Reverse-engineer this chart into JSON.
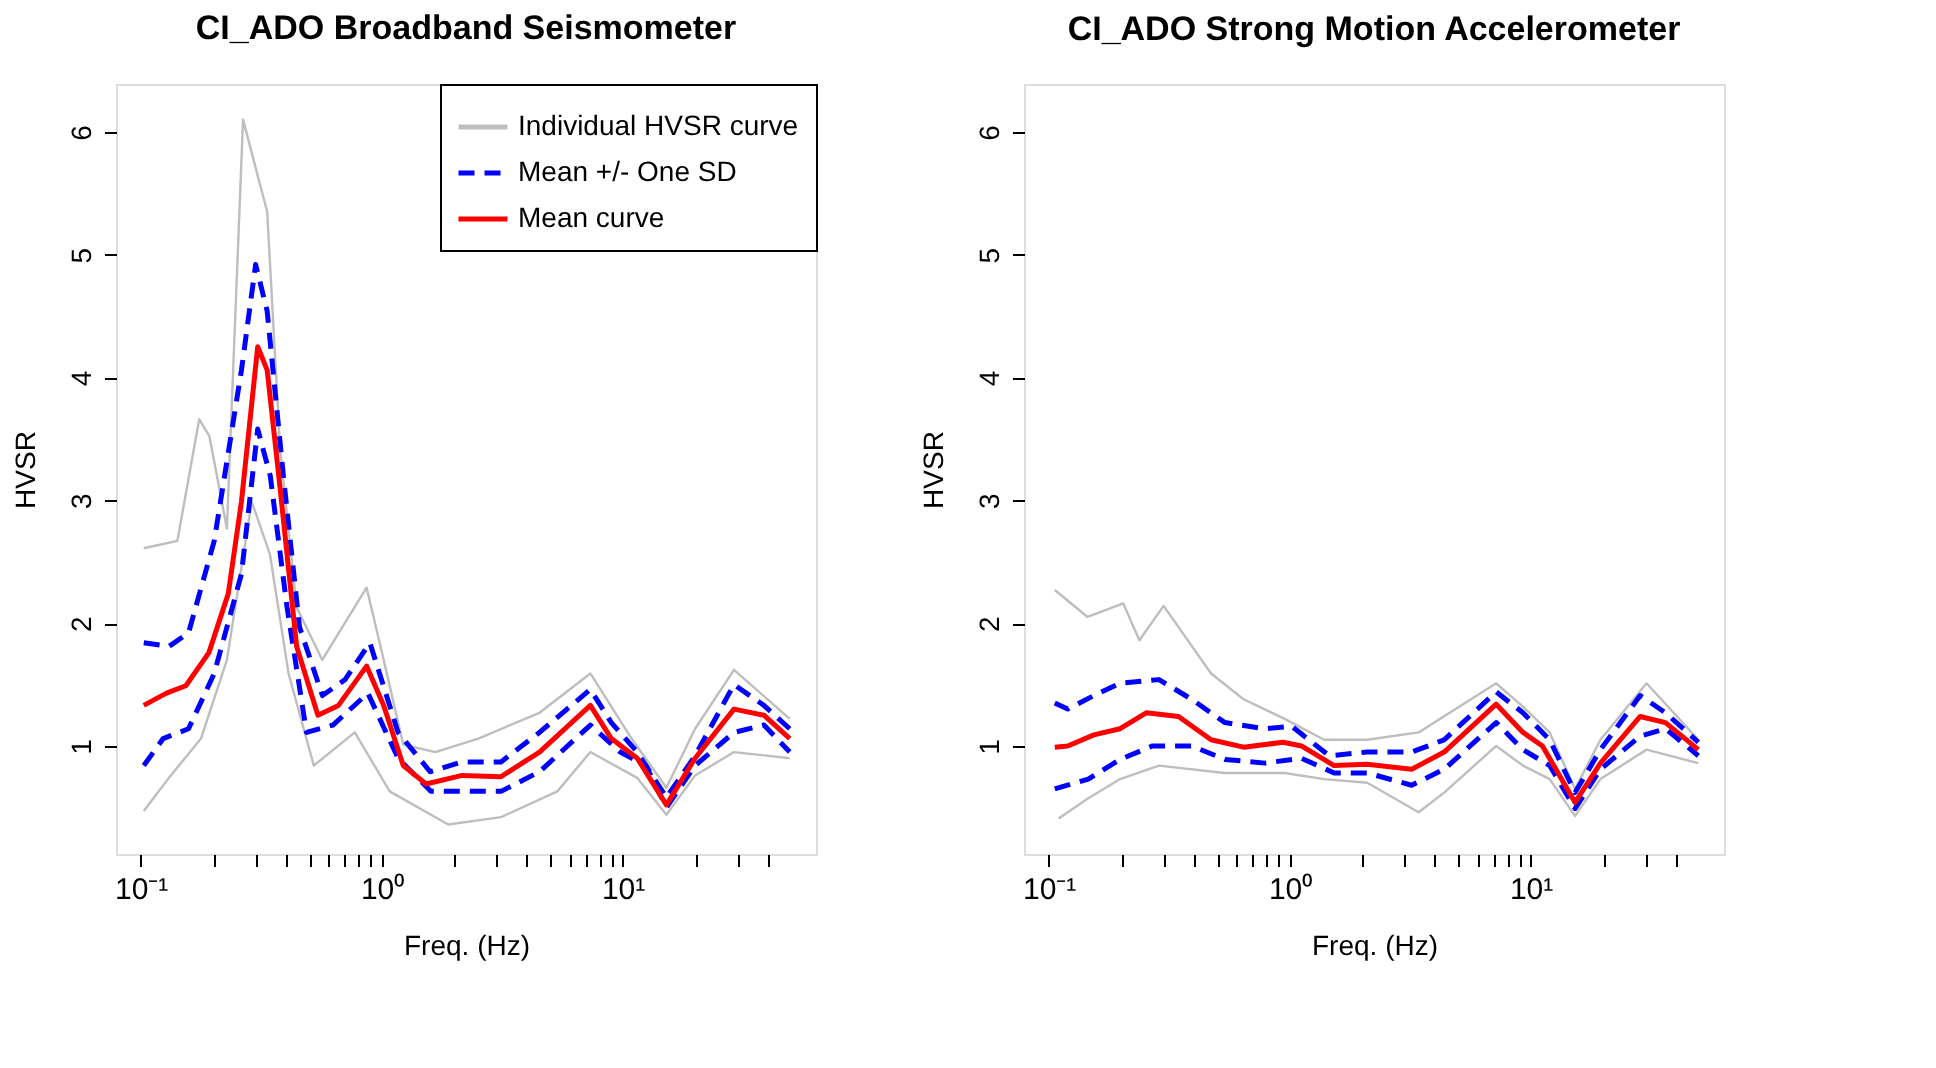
{
  "chart_data": [
    {
      "type": "line",
      "title": "CI_ADO Broadband Seismometer",
      "xlabel": "Freq. (Hz)",
      "ylabel": "HVSR",
      "log": "x",
      "xlim": [
        0.079,
        63.5
      ],
      "ylim": [
        0.12,
        6.39
      ],
      "xticks": [
        {
          "value": 0.1,
          "label": "10⁻¹"
        },
        {
          "value": 0.2,
          "label": null
        },
        {
          "value": 0.3,
          "label": null
        },
        {
          "value": 0.4,
          "label": null
        },
        {
          "value": 0.5,
          "label": null
        },
        {
          "value": 0.6,
          "label": null
        },
        {
          "value": 0.7,
          "label": null
        },
        {
          "value": 0.8,
          "label": null
        },
        {
          "value": 0.9,
          "label": null
        },
        {
          "value": 1,
          "label": "10⁰"
        },
        {
          "value": 2,
          "label": null
        },
        {
          "value": 3,
          "label": null
        },
        {
          "value": 4,
          "label": null
        },
        {
          "value": 5,
          "label": null
        },
        {
          "value": 6,
          "label": null
        },
        {
          "value": 7,
          "label": null
        },
        {
          "value": 8,
          "label": null
        },
        {
          "value": 9,
          "label": null
        },
        {
          "value": 10,
          "label": "10¹"
        },
        {
          "value": 20,
          "label": null
        },
        {
          "value": 30,
          "label": null
        },
        {
          "value": 40,
          "label": null
        }
      ],
      "yticks": [
        1,
        2,
        3,
        4,
        5,
        6
      ],
      "grid": false,
      "legend": "top right",
      "marker": "none",
      "series": [
        {
          "name": "Individual HVSR curve",
          "color": "#bebebe",
          "line_style": "solid",
          "x": [
            0.103,
            0.142,
            0.175,
            0.193,
            0.228,
            0.266,
            0.335,
            0.379,
            0.444,
            0.567,
            0.866,
            1.02,
            1.23,
            1.67,
            2.52,
            4.52,
            7.35,
            10.9,
            15.2,
            20.0,
            29.0,
            49.4
          ],
          "values": [
            2.61,
            2.67,
            3.66,
            3.52,
            2.77,
            6.1,
            5.35,
            3.42,
            2.13,
            1.7,
            2.29,
            1.7,
            1.01,
            0.95,
            1.06,
            1.27,
            1.59,
            1.06,
            0.66,
            1.14,
            1.62,
            1.22
          ]
        },
        {
          "color": "#bebebe",
          "line_style": "solid",
          "x": [
            0.103,
            0.131,
            0.178,
            0.228,
            0.289,
            0.344,
            0.411,
            0.523,
            0.774,
            1.08,
            1.89,
            3.13,
            5.36,
            7.35,
            11.5,
            15.2,
            20.0,
            29.0,
            49.4
          ],
          "values": [
            0.47,
            0.74,
            1.06,
            1.7,
            2.99,
            2.56,
            1.59,
            0.84,
            1.11,
            0.63,
            0.36,
            0.42,
            0.63,
            0.95,
            0.74,
            0.44,
            0.76,
            0.95,
            0.9
          ]
        },
        {
          "name": "Mean +/- One SD",
          "color": "#0000ff",
          "line_style": "dashed",
          "x": [
            0.103,
            0.131,
            0.158,
            0.202,
            0.262,
            0.3,
            0.335,
            0.391,
            0.456,
            0.568,
            0.705,
            0.894,
            1.17,
            1.59,
            2.16,
            3.13,
            4.52,
            7.35,
            8.98,
            11.5,
            15.2,
            20.0,
            29.0,
            38.6,
            49.4
          ],
          "values": [
            1.84,
            1.81,
            1.92,
            2.67,
            4.06,
            4.92,
            4.54,
            3.2,
            1.97,
            1.41,
            1.54,
            1.84,
            1.11,
            0.79,
            0.87,
            0.87,
            1.11,
            1.46,
            1.19,
            0.95,
            0.58,
            0.92,
            1.5,
            1.33,
            1.14
          ]
        },
        {
          "color": "#0000ff",
          "line_style": "dashed",
          "x": [
            0.103,
            0.124,
            0.158,
            0.202,
            0.262,
            0.306,
            0.345,
            0.405,
            0.488,
            0.628,
            0.877,
            1.17,
            1.6,
            2.16,
            3.13,
            4.52,
            7.35,
            9.78,
            12.5,
            15.2,
            20.0,
            29.0,
            38.6,
            49.4
          ],
          "values": [
            0.84,
            1.06,
            1.14,
            1.59,
            2.4,
            3.58,
            3.2,
            2.13,
            1.11,
            1.17,
            1.43,
            0.9,
            0.63,
            0.63,
            0.63,
            0.79,
            1.17,
            0.95,
            0.84,
            0.5,
            0.84,
            1.11,
            1.17,
            0.95
          ]
        },
        {
          "name": "Mean curve",
          "color": "#ff0000",
          "line_style": "solid",
          "x": [
            0.103,
            0.128,
            0.154,
            0.192,
            0.231,
            0.262,
            0.306,
            0.335,
            0.379,
            0.444,
            0.544,
            0.662,
            0.866,
            1.02,
            1.23,
            1.53,
            2.16,
            3.13,
            4.52,
            7.35,
            8.98,
            11.5,
            15.2,
            20.0,
            29.0,
            38.6,
            49.4
          ],
          "values": [
            1.33,
            1.43,
            1.49,
            1.76,
            2.24,
            2.99,
            4.25,
            4.06,
            3.1,
            1.81,
            1.25,
            1.33,
            1.65,
            1.33,
            0.84,
            0.69,
            0.76,
            0.75,
            0.95,
            1.33,
            1.06,
            0.9,
            0.52,
            0.9,
            1.3,
            1.25,
            1.06
          ]
        }
      ]
    },
    {
      "type": "line",
      "title": "CI_ADO Strong Motion Accelerometer",
      "xlabel": "Freq. (Hz)",
      "ylabel": "HVSR",
      "log": "x",
      "xlim": [
        0.079,
        63.5
      ],
      "ylim": [
        0.12,
        6.39
      ],
      "xticks": [
        {
          "value": 0.1,
          "label": "10⁻¹"
        },
        {
          "value": 0.2,
          "label": null
        },
        {
          "value": 0.3,
          "label": null
        },
        {
          "value": 0.4,
          "label": null
        },
        {
          "value": 0.5,
          "label": null
        },
        {
          "value": 0.6,
          "label": null
        },
        {
          "value": 0.7,
          "label": null
        },
        {
          "value": 0.8,
          "label": null
        },
        {
          "value": 0.9,
          "label": null
        },
        {
          "value": 1,
          "label": "10⁰"
        },
        {
          "value": 2,
          "label": null
        },
        {
          "value": 3,
          "label": null
        },
        {
          "value": 4,
          "label": null
        },
        {
          "value": 5,
          "label": null
        },
        {
          "value": 6,
          "label": null
        },
        {
          "value": 7,
          "label": null
        },
        {
          "value": 8,
          "label": null
        },
        {
          "value": 9,
          "label": null
        },
        {
          "value": 10,
          "label": "10¹"
        },
        {
          "value": 20,
          "label": null
        },
        {
          "value": 30,
          "label": null
        },
        {
          "value": 40,
          "label": null
        }
      ],
      "yticks": [
        1,
        2,
        3,
        4,
        5,
        6
      ],
      "grid": false,
      "legend": false,
      "marker": "none",
      "series": [
        {
          "color": "#bebebe",
          "line_style": "solid",
          "x": [
            0.106,
            0.145,
            0.204,
            0.238,
            0.3,
            0.472,
            0.644,
            0.954,
            1.39,
            2.1,
            3.43,
            7.2,
            9.3,
            12.0,
            15.3,
            19.5,
            30.3,
            49.7
          ],
          "values": [
            2.27,
            2.05,
            2.16,
            1.86,
            2.14,
            1.59,
            1.38,
            1.22,
            1.05,
            1.05,
            1.11,
            1.51,
            1.32,
            1.11,
            0.65,
            1.05,
            1.51,
            1.05
          ]
        },
        {
          "color": "#bebebe",
          "line_style": "solid",
          "x": [
            0.11,
            0.145,
            0.198,
            0.287,
            0.537,
            0.954,
            1.39,
            2.1,
            3.43,
            4.38,
            7.2,
            9.3,
            12.0,
            15.3,
            19.5,
            30.3,
            49.7
          ],
          "values": [
            0.41,
            0.57,
            0.73,
            0.84,
            0.78,
            0.78,
            0.73,
            0.7,
            0.46,
            0.62,
            1.0,
            0.84,
            0.73,
            0.43,
            0.73,
            0.97,
            0.86
          ]
        },
        {
          "color": "#0000ff",
          "line_style": "dashed",
          "x": [
            0.106,
            0.12,
            0.154,
            0.198,
            0.287,
            0.392,
            0.539,
            0.79,
            1.02,
            1.46,
            2.1,
            3.21,
            4.38,
            7.2,
            9.3,
            12.0,
            15.3,
            19.5,
            28.5,
            36.3,
            49.7
          ],
          "values": [
            1.35,
            1.3,
            1.41,
            1.51,
            1.54,
            1.38,
            1.19,
            1.14,
            1.16,
            0.92,
            0.95,
            0.95,
            1.05,
            1.44,
            1.27,
            1.05,
            0.62,
            0.97,
            1.41,
            1.27,
            1.03
          ]
        },
        {
          "color": "#0000ff",
          "line_style": "dashed",
          "x": [
            0.106,
            0.146,
            0.198,
            0.27,
            0.392,
            0.539,
            0.79,
            1.12,
            1.53,
            2.1,
            3.21,
            4.38,
            7.2,
            9.3,
            12.0,
            15.3,
            19.5,
            28.5,
            36.3,
            49.7
          ],
          "values": [
            0.65,
            0.73,
            0.89,
            1.0,
            1.0,
            0.89,
            0.86,
            0.9,
            0.78,
            0.78,
            0.68,
            0.81,
            1.19,
            0.97,
            0.84,
            0.49,
            0.81,
            1.08,
            1.14,
            0.92
          ]
        },
        {
          "color": "#ff0000",
          "line_style": "solid",
          "x": [
            0.106,
            0.12,
            0.154,
            0.198,
            0.254,
            0.346,
            0.472,
            0.644,
            0.94,
            1.12,
            1.53,
            2.1,
            3.21,
            4.38,
            7.2,
            9.3,
            11.2,
            15.3,
            19.5,
            28.5,
            36.3,
            49.7
          ],
          "values": [
            0.99,
            1.0,
            1.09,
            1.14,
            1.27,
            1.24,
            1.05,
            0.99,
            1.03,
            1.0,
            0.84,
            0.85,
            0.81,
            0.95,
            1.34,
            1.11,
            1.0,
            0.54,
            0.86,
            1.24,
            1.19,
            0.97
          ]
        }
      ]
    }
  ]
}
